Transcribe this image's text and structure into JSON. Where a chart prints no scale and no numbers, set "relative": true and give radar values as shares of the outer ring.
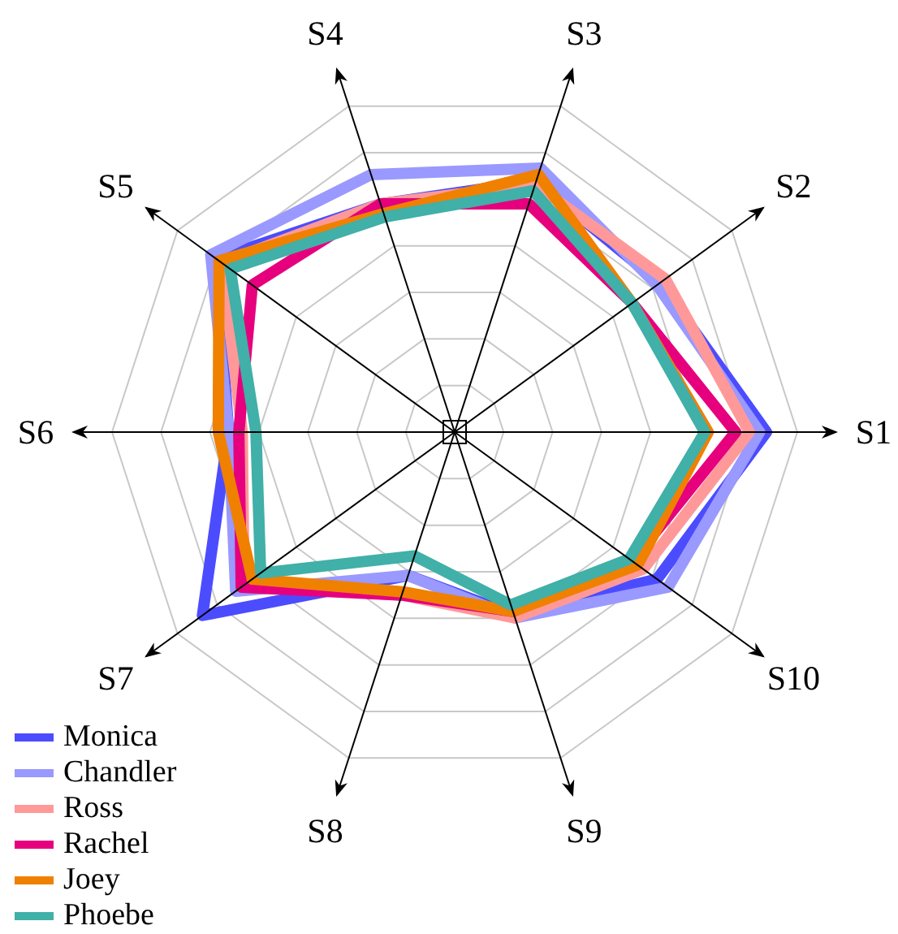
{
  "chart_data": {
    "type": "radar",
    "relative": true,
    "grid": true,
    "legend": "bottom left",
    "categories": [
      "S3",
      "S2",
      "S1",
      "S10",
      "S9",
      "S8",
      "S7",
      "S6",
      "S5",
      "S4"
    ],
    "series": [
      {
        "name": "Monica",
        "color": "#4c4cff",
        "values": [
          0.77,
          0.74,
          0.91,
          0.73,
          0.56,
          0.44,
          0.91,
          0.66,
          0.86,
          0.7
        ]
      },
      {
        "name": "Chandler",
        "color": "#9999ff",
        "values": [
          0.81,
          0.73,
          0.89,
          0.77,
          0.57,
          0.44,
          0.79,
          0.66,
          0.88,
          0.79
        ]
      },
      {
        "name": "Ross",
        "color": "#ff9999",
        "values": [
          0.76,
          0.76,
          0.86,
          0.68,
          0.57,
          0.5,
          0.76,
          0.62,
          0.84,
          0.7
        ]
      },
      {
        "name": "Rachel",
        "color": "#e6007e",
        "values": [
          0.7,
          0.64,
          0.82,
          0.64,
          0.55,
          0.5,
          0.77,
          0.63,
          0.73,
          0.7
        ]
      },
      {
        "name": "Joey",
        "color": "#f08000",
        "values": [
          0.79,
          0.64,
          0.74,
          0.66,
          0.55,
          0.49,
          0.73,
          0.69,
          0.85,
          0.67
        ]
      },
      {
        "name": "Phoebe",
        "color": "#40b0a8",
        "values": [
          0.74,
          0.64,
          0.73,
          0.63,
          0.53,
          0.38,
          0.7,
          0.58,
          0.81,
          0.66
        ]
      }
    ]
  }
}
